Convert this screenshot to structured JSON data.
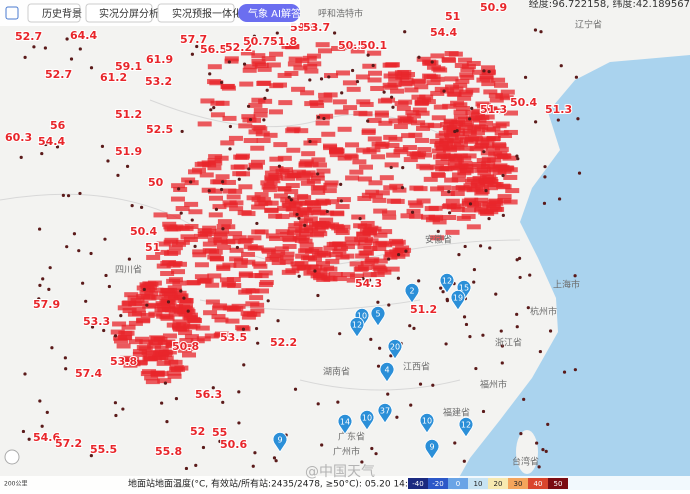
{
  "toolbar": {
    "buttons": [
      "历史背景",
      "实况分屏分析",
      "实况预报一体化"
    ],
    "ai": "气象 AI解答"
  },
  "coordinates": "经度:96.722158, 纬度:42.189567",
  "places": [
    "辽宁省",
    "上海市",
    "杭州市",
    "浙江省",
    "江西省",
    "湖南省",
    "广东省",
    "广州市",
    "福建省",
    "福州市",
    "台湾省",
    "四川省",
    "安徽省",
    "呼和浩特市"
  ],
  "temperatures": [
    52.7,
    64.4,
    57.7,
    56.5,
    52.2,
    50.7,
    51.8,
    59.8,
    53.7,
    50.9,
    51,
    54.4,
    50.5,
    50.1,
    61.9,
    59.1,
    53.2,
    52.7,
    61.2,
    60.3,
    54.4,
    56,
    51.2,
    52.5,
    51.9,
    50,
    50.4,
    51,
    57.9,
    53.3,
    51.3,
    54.3,
    51.2,
    52.2,
    56.3,
    54.6,
    57.2,
    55.5,
    55.8,
    50.6,
    53.5,
    57.4,
    53.8,
    50.8,
    52,
    55,
    51.3,
    50.4
  ],
  "markers": [
    12,
    15,
    19,
    2,
    10,
    5,
    12,
    20,
    4,
    14,
    10,
    37,
    10,
    12,
    9,
    9
  ],
  "footer": {
    "caption": "地面站地面温度(°C, 有效站/所有站:2435/2478, ≥50°C): 05.20 14:00 BJT",
    "scale": "200公里",
    "watermark": "@中国天气",
    "legend_ticks": [
      -40,
      -20,
      0,
      10,
      20,
      30,
      40,
      50
    ]
  }
}
